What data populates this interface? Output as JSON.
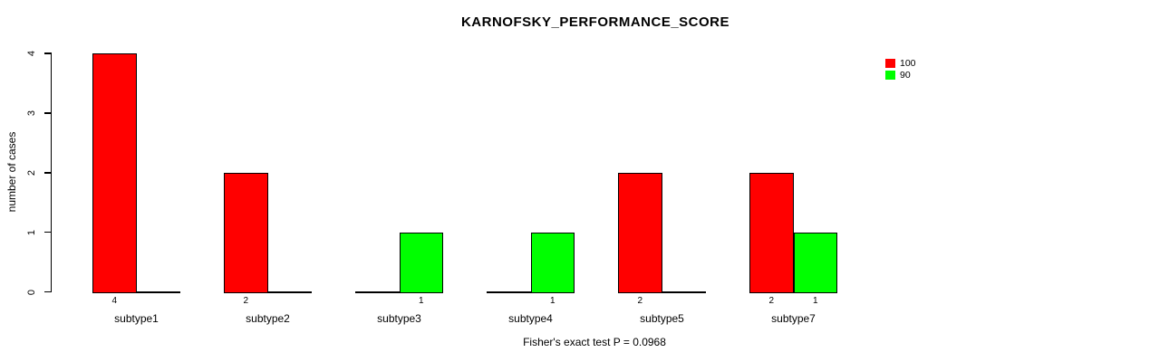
{
  "chart_data": {
    "type": "bar",
    "title": "KARNOFSKY_PERFORMANCE_SCORE",
    "xlabel": "",
    "ylabel": "number of cases",
    "annotation": "Fisher's exact test P = 0.0968",
    "categories": [
      "subtype1",
      "subtype2",
      "subtype3",
      "subtype4",
      "subtype5",
      "subtype7"
    ],
    "series": [
      {
        "name": "100",
        "color": "#FF0000",
        "values": [
          4,
          2,
          0,
          0,
          2,
          2
        ]
      },
      {
        "name": "90",
        "color": "#00FF00",
        "values": [
          0,
          0,
          1,
          1,
          0,
          1
        ]
      }
    ],
    "yticks": [
      0,
      1,
      2,
      3,
      4
    ],
    "ylim": [
      0,
      4
    ],
    "grid": false,
    "legend_position": "top-right",
    "bar_value_labels": true,
    "axis_color": "#000000",
    "text_color": "#000000",
    "background_color": "#FFFFFF"
  }
}
